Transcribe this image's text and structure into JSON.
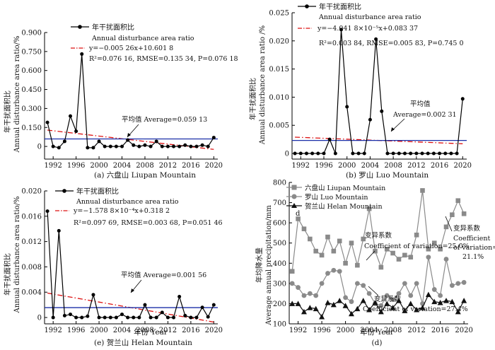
{
  "chart_data": [
    {
      "id": "a",
      "type": "line",
      "caption": "(a) 六盘山 Liupan Mountain",
      "ylabel": [
        "年干扰面积比",
        "Annual disturbance area ratio/%"
      ],
      "xlabel": "",
      "ylim": [
        -0.1,
        0.9
      ],
      "yticks": [
        {
          "v": 0,
          "t": "0"
        },
        {
          "v": 0.15,
          "t": "0.150"
        },
        {
          "v": 0.3,
          "t": "0.300"
        },
        {
          "v": 0.45,
          "t": "0.450"
        },
        {
          "v": 0.6,
          "t": "0.600"
        },
        {
          "v": 0.75,
          "t": "0.750"
        },
        {
          "v": 0.9,
          "t": "0.900"
        }
      ],
      "xticks": [
        1992,
        1996,
        2000,
        2004,
        2008,
        2012,
        2016,
        2020
      ],
      "series": {
        "name_cn": "年干扰面积比",
        "name_en": "Annual disturbance area ratio",
        "x": [
          1991,
          1992,
          1993,
          1994,
          1995,
          1996,
          1997,
          1998,
          1999,
          2000,
          2001,
          2002,
          2003,
          2004,
          2005,
          2006,
          2007,
          2008,
          2009,
          2010,
          2011,
          2012,
          2013,
          2014,
          2015,
          2016,
          2017,
          2018,
          2019,
          2020
        ],
        "y": [
          0.19,
          0.0,
          -0.01,
          0.04,
          0.24,
          0.12,
          0.73,
          -0.01,
          -0.01,
          0.04,
          0.0,
          0.0,
          0.0,
          0.0,
          0.05,
          0.01,
          0.0,
          0.01,
          0.0,
          0.04,
          0.0,
          0.0,
          0.0,
          0.0,
          0.01,
          0.0,
          0.0,
          0.01,
          0.0,
          0.07
        ]
      },
      "fit": {
        "text": "y=−0.005 26x+10.601 8",
        "stats": "R²=0.076 16, RMSE=0.135 34, P=0.076 18",
        "slope": -0.00526,
        "intercept": 10.6018
      },
      "average": {
        "label": "平均值 Average=0.059 13",
        "value": 0.05913
      }
    },
    {
      "id": "b",
      "type": "line",
      "caption": "(b) 罗山 Luo Mountain",
      "ylabel": [
        "年干扰面积比",
        "Annual disturbance area ratio /%"
      ],
      "xlabel": "",
      "ylim": [
        -0.001,
        0.025
      ],
      "yticks": [
        {
          "v": 0,
          "t": "0"
        },
        {
          "v": 0.005,
          "t": "0.005"
        },
        {
          "v": 0.01,
          "t": "0.010"
        },
        {
          "v": 0.015,
          "t": "0.015"
        },
        {
          "v": 0.02,
          "t": "0.020"
        },
        {
          "v": 0.025,
          "t": "0.025"
        }
      ],
      "xticks": [
        1992,
        1996,
        2000,
        2004,
        2008,
        2012,
        2016,
        2020
      ],
      "series": {
        "name_cn": "年干扰面积比",
        "name_en": "Annual disturbance area ratio",
        "x": [
          1991,
          1992,
          1993,
          1994,
          1995,
          1996,
          1997,
          1998,
          1999,
          2000,
          2001,
          2002,
          2003,
          2004,
          2005,
          2006,
          2007,
          2008,
          2009,
          2010,
          2011,
          2012,
          2013,
          2014,
          2015,
          2016,
          2017,
          2018,
          2019,
          2020
        ],
        "y": [
          0,
          0,
          0,
          0,
          0,
          0,
          0.0025,
          0,
          0.022,
          0.0083,
          0,
          0,
          0,
          0.006,
          0.0203,
          0.0075,
          0,
          0,
          0,
          0,
          0,
          0,
          0,
          0,
          0,
          0,
          0,
          0,
          0,
          0.0097
        ]
      },
      "fit": {
        "text": "y=−4.041 8×10⁻⁵x+0.083 37",
        "stats": "R²=0.003 84, RMSE=0.005 83, P=0.745 0",
        "slope": -4.0418e-05,
        "intercept": 0.08337
      },
      "average": {
        "label_cn": "平均值",
        "label_en": "Average=0.002 31",
        "value": 0.00231
      }
    },
    {
      "id": "c",
      "type": "line",
      "caption": "(e) 贺兰山 Helan Mountain",
      "ylabel": [
        "年干扰面积比",
        "Annual disturbance area ratio/%"
      ],
      "xlabel": "年份 Year",
      "ylim": [
        -0.001,
        0.02
      ],
      "yticks": [
        {
          "v": 0,
          "t": "0"
        },
        {
          "v": 0.004,
          "t": "0.004"
        },
        {
          "v": 0.008,
          "t": "0.008"
        },
        {
          "v": 0.012,
          "t": "0.012"
        },
        {
          "v": 0.016,
          "t": "0.016"
        },
        {
          "v": 0.02,
          "t": "0.020"
        }
      ],
      "xticks": [
        1992,
        1996,
        2000,
        2004,
        2008,
        2012,
        2016,
        2020
      ],
      "series": {
        "name_cn": "年干扰面积比",
        "name_en": "Annual disturbance area ratio",
        "x": [
          1991,
          1992,
          1993,
          1994,
          1995,
          1996,
          1997,
          1998,
          1999,
          2000,
          2001,
          2002,
          2003,
          2004,
          2005,
          2006,
          2007,
          2008,
          2009,
          2010,
          2011,
          2012,
          2013,
          2014,
          2015,
          2016,
          2017,
          2018,
          2019,
          2020
        ],
        "y": [
          0.0168,
          0,
          0.0137,
          0.0003,
          0.0005,
          0,
          0,
          0.0002,
          0.0036,
          0,
          0,
          0,
          0,
          0.0005,
          0,
          0,
          0,
          0.002,
          0,
          0,
          0.0008,
          0,
          0,
          0.0033,
          0.0003,
          0,
          0,
          0.0016,
          0.0001,
          0.002
        ]
      },
      "fit": {
        "text": "y=−1.578 8×10⁻⁴x+0.318 2",
        "stats": "R²=0.097 69, RMSE=0.003 68, P=0.051 46",
        "slope": -0.00015788,
        "intercept": 0.3182
      },
      "average": {
        "label": "平均值 Average=0.001 56",
        "value": 0.00156
      }
    },
    {
      "id": "d",
      "type": "line",
      "caption": "(d)",
      "ylabel": [
        "年均降水量",
        "Average annual precipitation/mm"
      ],
      "xlabel": "年份 Year",
      "ylim": [
        100,
        800
      ],
      "yticks": [
        {
          "v": 100,
          "t": "100"
        },
        {
          "v": 200,
          "t": "200"
        },
        {
          "v": 300,
          "t": "300"
        },
        {
          "v": 400,
          "t": "400"
        },
        {
          "v": 500,
          "t": "500"
        },
        {
          "v": 600,
          "t": "600"
        },
        {
          "v": 700,
          "t": "700"
        },
        {
          "v": 800,
          "t": "800"
        }
      ],
      "xticks": [
        1992,
        1996,
        2000,
        2004,
        2008,
        2012,
        2016,
        2020
      ],
      "corner_label": "d",
      "series": [
        {
          "name": "六盘山 Liupan Mountain",
          "marker": "square",
          "color": "#8a8a8a",
          "x": [
            1991,
            1992,
            1993,
            1994,
            1995,
            1996,
            1997,
            1998,
            1999,
            2000,
            2001,
            2002,
            2003,
            2004,
            2005,
            2006,
            2007,
            2008,
            2009,
            2010,
            2011,
            2012,
            2013,
            2014,
            2015,
            2016,
            2017,
            2018,
            2019,
            2020
          ],
          "y": [
            360,
            620,
            570,
            520,
            460,
            440,
            530,
            460,
            510,
            400,
            500,
            390,
            520,
            670,
            460,
            380,
            470,
            450,
            420,
            440,
            430,
            540,
            760,
            470,
            500,
            470,
            580,
            640,
            710,
            645
          ]
        },
        {
          "name": "罗山 Luo Mountain",
          "marker": "circle",
          "color": "#8a8a8a",
          "x": [
            1991,
            1992,
            1993,
            1994,
            1995,
            1996,
            1997,
            1998,
            1999,
            2000,
            2001,
            2002,
            2003,
            2004,
            2005,
            2006,
            2007,
            2008,
            2009,
            2010,
            2011,
            2012,
            2013,
            2014,
            2015,
            2016,
            2017,
            2018,
            2019,
            2020
          ],
          "y": [
            300,
            280,
            240,
            250,
            240,
            300,
            350,
            365,
            360,
            230,
            210,
            300,
            290,
            250,
            200,
            190,
            240,
            220,
            250,
            300,
            240,
            300,
            200,
            430,
            270,
            240,
            420,
            290,
            300,
            305
          ]
        },
        {
          "name": "贺兰山 Helan Mountain",
          "marker": "triangle",
          "color": "#111111",
          "x": [
            1991,
            1992,
            1993,
            1994,
            1995,
            1996,
            1997,
            1998,
            1999,
            2000,
            2001,
            2002,
            2003,
            2004,
            2005,
            2006,
            2007,
            2008,
            2009,
            2010,
            2011,
            2012,
            2013,
            2014,
            2015,
            2016,
            2017,
            2018,
            2019,
            2020
          ],
          "y": [
            200,
            200,
            160,
            180,
            175,
            135,
            205,
            195,
            215,
            190,
            150,
            175,
            215,
            170,
            205,
            160,
            200,
            180,
            215,
            165,
            200,
            170,
            180,
            245,
            210,
            205,
            215,
            210,
            160,
            215
          ]
        }
      ],
      "annotations": [
        {
          "line1": "变异系数",
          "line2": "Coefficient",
          "line3": "of variation=",
          "line4": "21.1%"
        },
        {
          "line1": "变异系数",
          "line2": "Coefficient of variation=25.0%"
        },
        {
          "line1": "变异系数",
          "line2": "Coefficient of variation=27.4%"
        }
      ]
    }
  ]
}
